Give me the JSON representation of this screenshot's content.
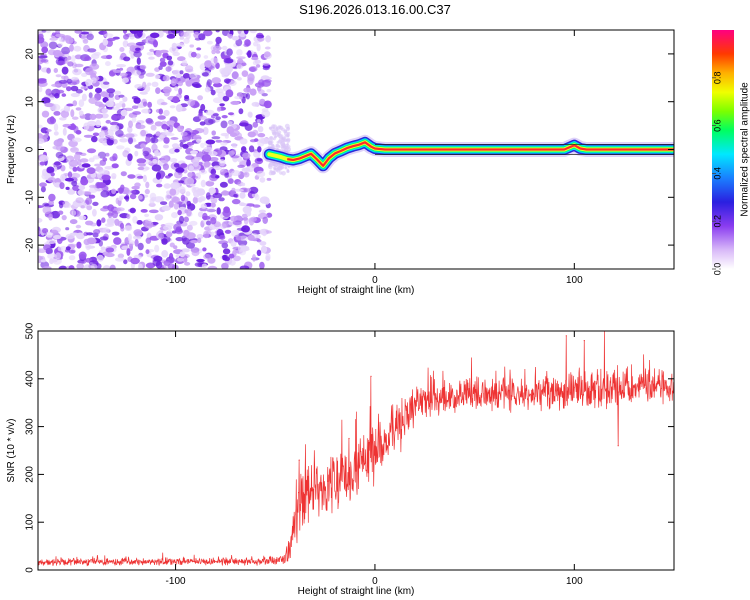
{
  "title": "S196.2026.013.16.00.C37",
  "chart_data": [
    {
      "type": "heatmap",
      "name": "spectrogram",
      "xlabel": "Height of straight line (km)",
      "ylabel": "Frequency (Hz)",
      "xlim": [
        -169,
        150
      ],
      "ylim": [
        -25,
        25
      ],
      "xticks": [
        -100,
        0,
        100
      ],
      "yticks": [
        -20,
        -10,
        0,
        10,
        20
      ],
      "noise_region_x": [
        -169,
        -53
      ],
      "track": {
        "x": [
          -53,
          -50,
          -47,
          -44,
          -41,
          -38,
          -35,
          -32,
          -29,
          -26,
          -23,
          -20,
          -17,
          -14,
          -11,
          -8,
          -5,
          -2,
          0,
          5,
          20,
          40,
          60,
          80,
          95,
          100,
          103,
          106,
          110,
          120,
          150
        ],
        "freq": [
          -1.0,
          -1.3,
          -1.6,
          -2.0,
          -2.2,
          -1.9,
          -1.4,
          -0.9,
          -2.1,
          -3.4,
          -1.8,
          -0.8,
          -0.3,
          0.3,
          0.7,
          1.0,
          1.5,
          0.6,
          0.2,
          0.0,
          0.0,
          0.0,
          0.0,
          0.0,
          0.0,
          0.9,
          0.2,
          0.0,
          0.0,
          0.0,
          0.0
        ]
      },
      "colorbar": {
        "label": "Normalized spectral amplitude",
        "ticks": [
          "0.0",
          "0.2",
          "0.4",
          "0.6",
          "0.8"
        ],
        "tick_values": [
          0.0,
          0.2,
          0.4,
          0.6,
          0.8
        ],
        "range": [
          0,
          1
        ]
      }
    },
    {
      "type": "line",
      "name": "snr",
      "xlabel": "Height of straight line (km)",
      "ylabel": "SNR (10 * v/v)",
      "xlim": [
        -169,
        150
      ],
      "ylim": [
        0,
        500
      ],
      "xticks": [
        -100,
        0,
        100
      ],
      "yticks": [
        0,
        100,
        200,
        300,
        400,
        500
      ],
      "line_color": "#ee3333",
      "envelope": {
        "x": [
          -169,
          -140,
          -100,
          -60,
          -45,
          -42,
          -40,
          -35,
          -30,
          -20,
          -10,
          0,
          10,
          20,
          30,
          50,
          80,
          100,
          120,
          140,
          150
        ],
        "mean": [
          15,
          17,
          18,
          18,
          20,
          60,
          120,
          150,
          170,
          180,
          210,
          250,
          300,
          340,
          360,
          365,
          370,
          375,
          380,
          385,
          380
        ],
        "spread": [
          8,
          8,
          8,
          8,
          10,
          40,
          60,
          60,
          60,
          70,
          70,
          70,
          60,
          45,
          35,
          35,
          35,
          40,
          40,
          35,
          35
        ]
      },
      "peaks": [
        {
          "x": -38,
          "y": 230
        },
        {
          "x": -13,
          "y": 275
        },
        {
          "x": -2,
          "y": 405
        },
        {
          "x": 96,
          "y": 490
        },
        {
          "x": 105,
          "y": 480
        },
        {
          "x": 115,
          "y": 500
        },
        {
          "x": 122,
          "y": 260
        }
      ]
    }
  ]
}
